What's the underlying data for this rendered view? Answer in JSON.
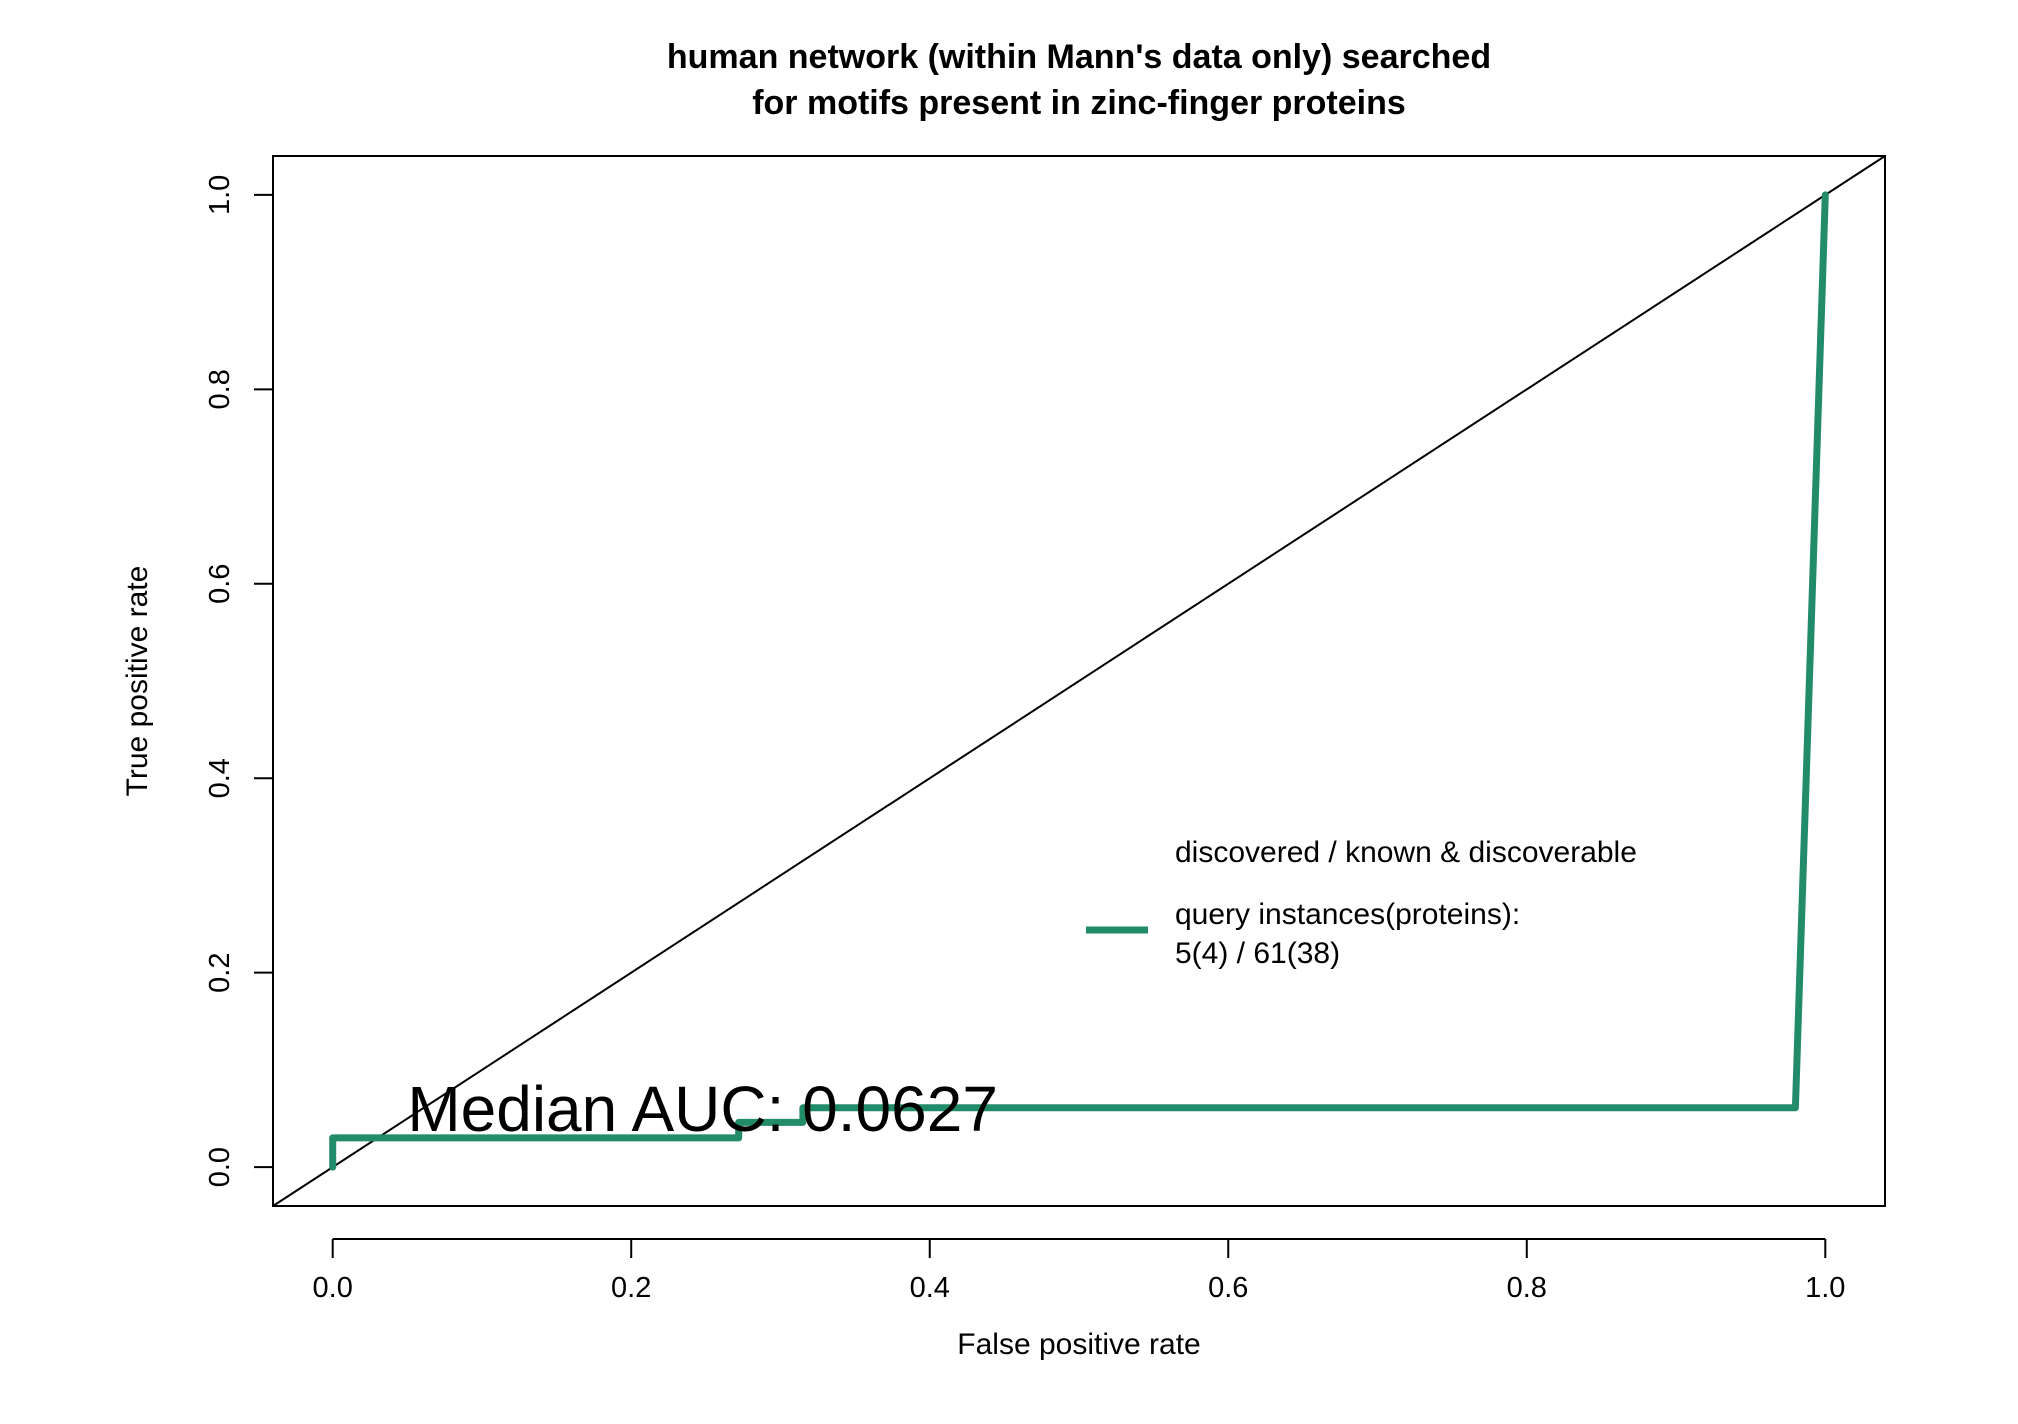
{
  "chart_data": {
    "type": "line",
    "title_lines": [
      "human network (within Mann's data only) searched",
      "for motifs present in zinc-finger proteins"
    ],
    "xlabel": "False positive rate",
    "ylabel": "True positive rate",
    "xlim": [
      -0.04,
      1.04
    ],
    "ylim": [
      -0.04,
      1.04
    ],
    "x_ticks": [
      0.0,
      0.2,
      0.4,
      0.6,
      0.8,
      1.0
    ],
    "y_ticks": [
      0.0,
      0.2,
      0.4,
      0.6,
      0.8,
      1.0
    ],
    "x_tick_labels": [
      "0.0",
      "0.2",
      "0.4",
      "0.6",
      "0.8",
      "1.0"
    ],
    "y_tick_labels": [
      "0.0",
      "0.2",
      "0.4",
      "0.6",
      "0.8",
      "1.0"
    ],
    "diagonal": {
      "from": [
        -0.04,
        -0.04
      ],
      "to": [
        1.04,
        1.04
      ],
      "color": "#000000"
    },
    "series": [
      {
        "color": "#228B6A",
        "points": [
          [
            0.0,
            0.0
          ],
          [
            0.0,
            0.03
          ],
          [
            0.272,
            0.03
          ],
          [
            0.272,
            0.046
          ],
          [
            0.315,
            0.046
          ],
          [
            0.315,
            0.061
          ],
          [
            0.98,
            0.061
          ],
          [
            1.0,
            1.0
          ]
        ]
      }
    ],
    "legend": {
      "header": "discovered / known & discoverable",
      "entry_lines": [
        "query instances(proteins):",
        "5(4) / 61(38)"
      ],
      "color": "#228B6A",
      "placement": "center-right"
    },
    "annotation": {
      "text": "Median AUC: 0.0627",
      "x": 0.05,
      "y": 0.06
    }
  }
}
